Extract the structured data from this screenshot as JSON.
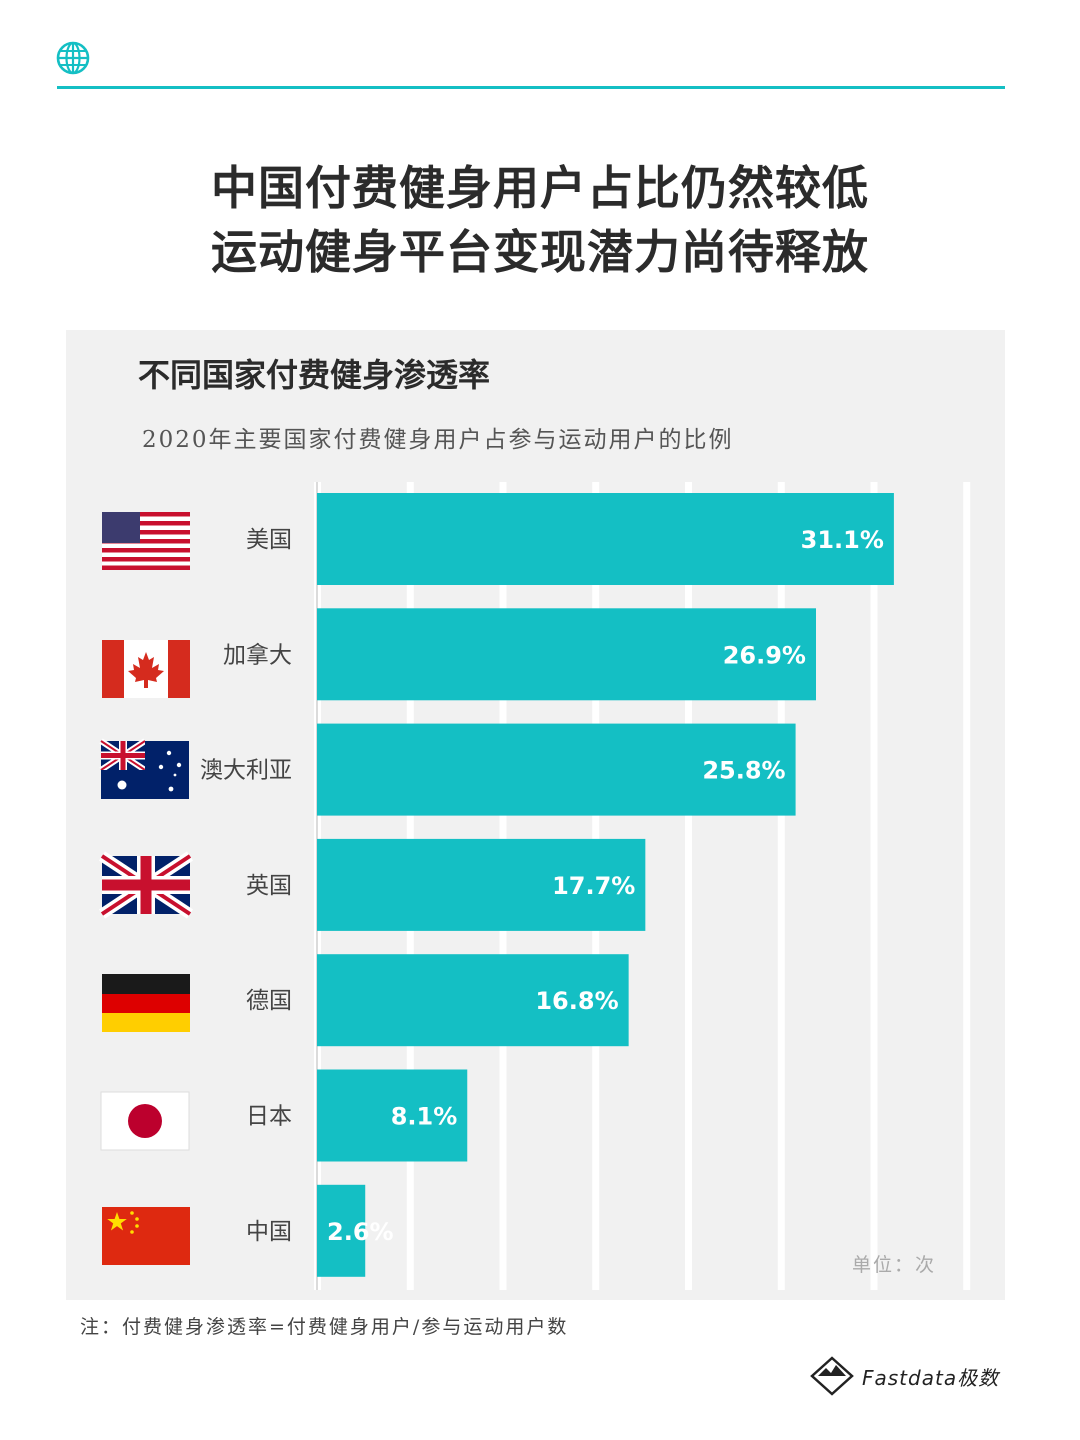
{
  "header": {
    "icon": "globe-icon",
    "title_line1": "中国付费健身用户占比仍然较低",
    "title_line2": "运动健身平台变现潜力尚待释放"
  },
  "chart_data": {
    "type": "bar",
    "orientation": "horizontal",
    "title": "不同国家付费健身渗透率",
    "subtitle": "2020年主要国家付费健身用户占参与运动用户的比例",
    "categories": [
      "美国",
      "加拿大",
      "澳大利亚",
      "英国",
      "德国",
      "日本",
      "中国"
    ],
    "flags": [
      "us-flag-icon",
      "canada-flag-icon",
      "australia-flag-icon",
      "uk-flag-icon",
      "germany-flag-icon",
      "japan-flag-icon",
      "china-flag-icon"
    ],
    "values": [
      31.1,
      26.9,
      25.8,
      17.7,
      16.8,
      8.1,
      2.6
    ],
    "value_labels": [
      "31.1%",
      "26.9%",
      "25.8%",
      "17.7%",
      "16.8%",
      "8.1%",
      "2.6%"
    ],
    "xlim": [
      0,
      35
    ],
    "grid": true,
    "unit_note": "单位：次",
    "bar_color": "#14bfc4"
  },
  "footer": {
    "note": "注：付费健身渗透率=付费健身用户/参与运动用户数",
    "brand": "Fastdata极数"
  },
  "colors": {
    "accent": "#14bfc4",
    "panel": "#f1f1f1"
  }
}
